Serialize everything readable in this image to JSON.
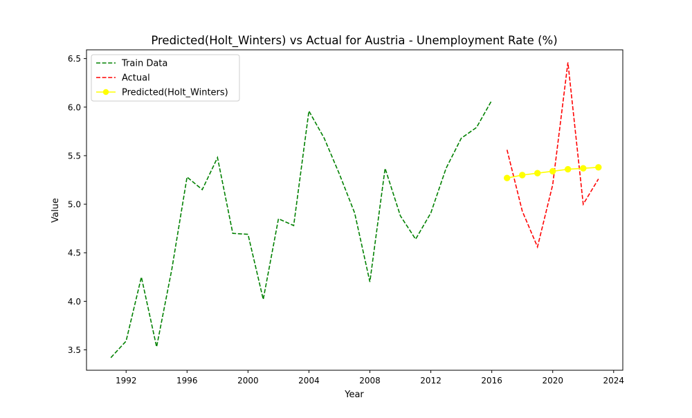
{
  "chart_data": {
    "type": "line",
    "title": "Predicted(Holt_Winters) vs Actual for Austria - Unemployment Rate (%)",
    "xlabel": "Year",
    "ylabel": "Value",
    "xlim": [
      1989.4,
      2024.6
    ],
    "ylim": [
      3.29,
      6.59
    ],
    "xticks": [
      1992,
      1996,
      2000,
      2004,
      2008,
      2012,
      2016,
      2020,
      2024
    ],
    "yticks": [
      3.5,
      4.0,
      4.5,
      5.0,
      5.5,
      6.0,
      6.5
    ],
    "legend_position": "top-left",
    "series": [
      {
        "name": "Train Data",
        "color": "#008000",
        "style": "dashed",
        "marker": "none",
        "x": [
          1991,
          1992,
          1993,
          1994,
          1995,
          1996,
          1997,
          1998,
          1999,
          2000,
          2001,
          2002,
          2003,
          2004,
          2005,
          2006,
          2007,
          2008,
          2009,
          2010,
          2011,
          2012,
          2013,
          2014,
          2015,
          2016
        ],
        "y": [
          3.42,
          3.59,
          4.25,
          3.53,
          4.33,
          5.28,
          5.15,
          5.48,
          4.7,
          4.69,
          4.02,
          4.85,
          4.78,
          5.96,
          5.68,
          5.31,
          4.91,
          4.2,
          5.37,
          4.88,
          4.64,
          4.91,
          5.37,
          5.68,
          5.79,
          6.07
        ]
      },
      {
        "name": "Actual",
        "color": "#ff0000",
        "style": "dashed",
        "marker": "none",
        "x": [
          2017,
          2018,
          2019,
          2020,
          2021,
          2022,
          2023
        ],
        "y": [
          5.56,
          4.93,
          4.56,
          5.2,
          6.46,
          5.0,
          5.26
        ]
      },
      {
        "name": "Predicted(Holt_Winters)",
        "color": "#ffff00",
        "style": "solid",
        "marker": "circle",
        "x": [
          2017,
          2018,
          2019,
          2020,
          2021,
          2022,
          2023
        ],
        "y": [
          5.27,
          5.3,
          5.32,
          5.34,
          5.36,
          5.37,
          5.38
        ]
      }
    ]
  }
}
